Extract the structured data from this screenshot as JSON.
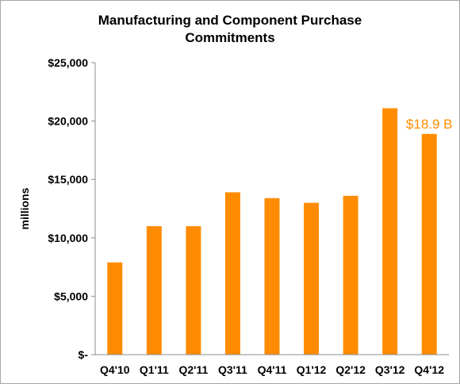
{
  "chart_data": {
    "type": "bar",
    "title_lines": [
      "Manufacturing and Component Purchase",
      "Commitments"
    ],
    "ylabel": "millions",
    "xlabel": "",
    "categories": [
      "Q4'10",
      "Q1'11",
      "Q2'11",
      "Q3'11",
      "Q4'11",
      "Q1'12",
      "Q2'12",
      "Q3'12",
      "Q4'12"
    ],
    "values": [
      7900,
      11000,
      11000,
      13900,
      13400,
      13000,
      13600,
      21100,
      18900
    ],
    "ylim": [
      0,
      25000
    ],
    "yticks": [
      0,
      5000,
      10000,
      15000,
      20000,
      25000
    ],
    "ytick_labels": [
      "$-",
      "$5,000",
      "$10,000",
      "$15,000",
      "$20,000",
      "$25,000"
    ],
    "bar_color": "#ff8c00",
    "grid": false,
    "annotation": {
      "text": "$18.9 B",
      "category": "Q4'12",
      "color": "#ff8c00"
    }
  }
}
